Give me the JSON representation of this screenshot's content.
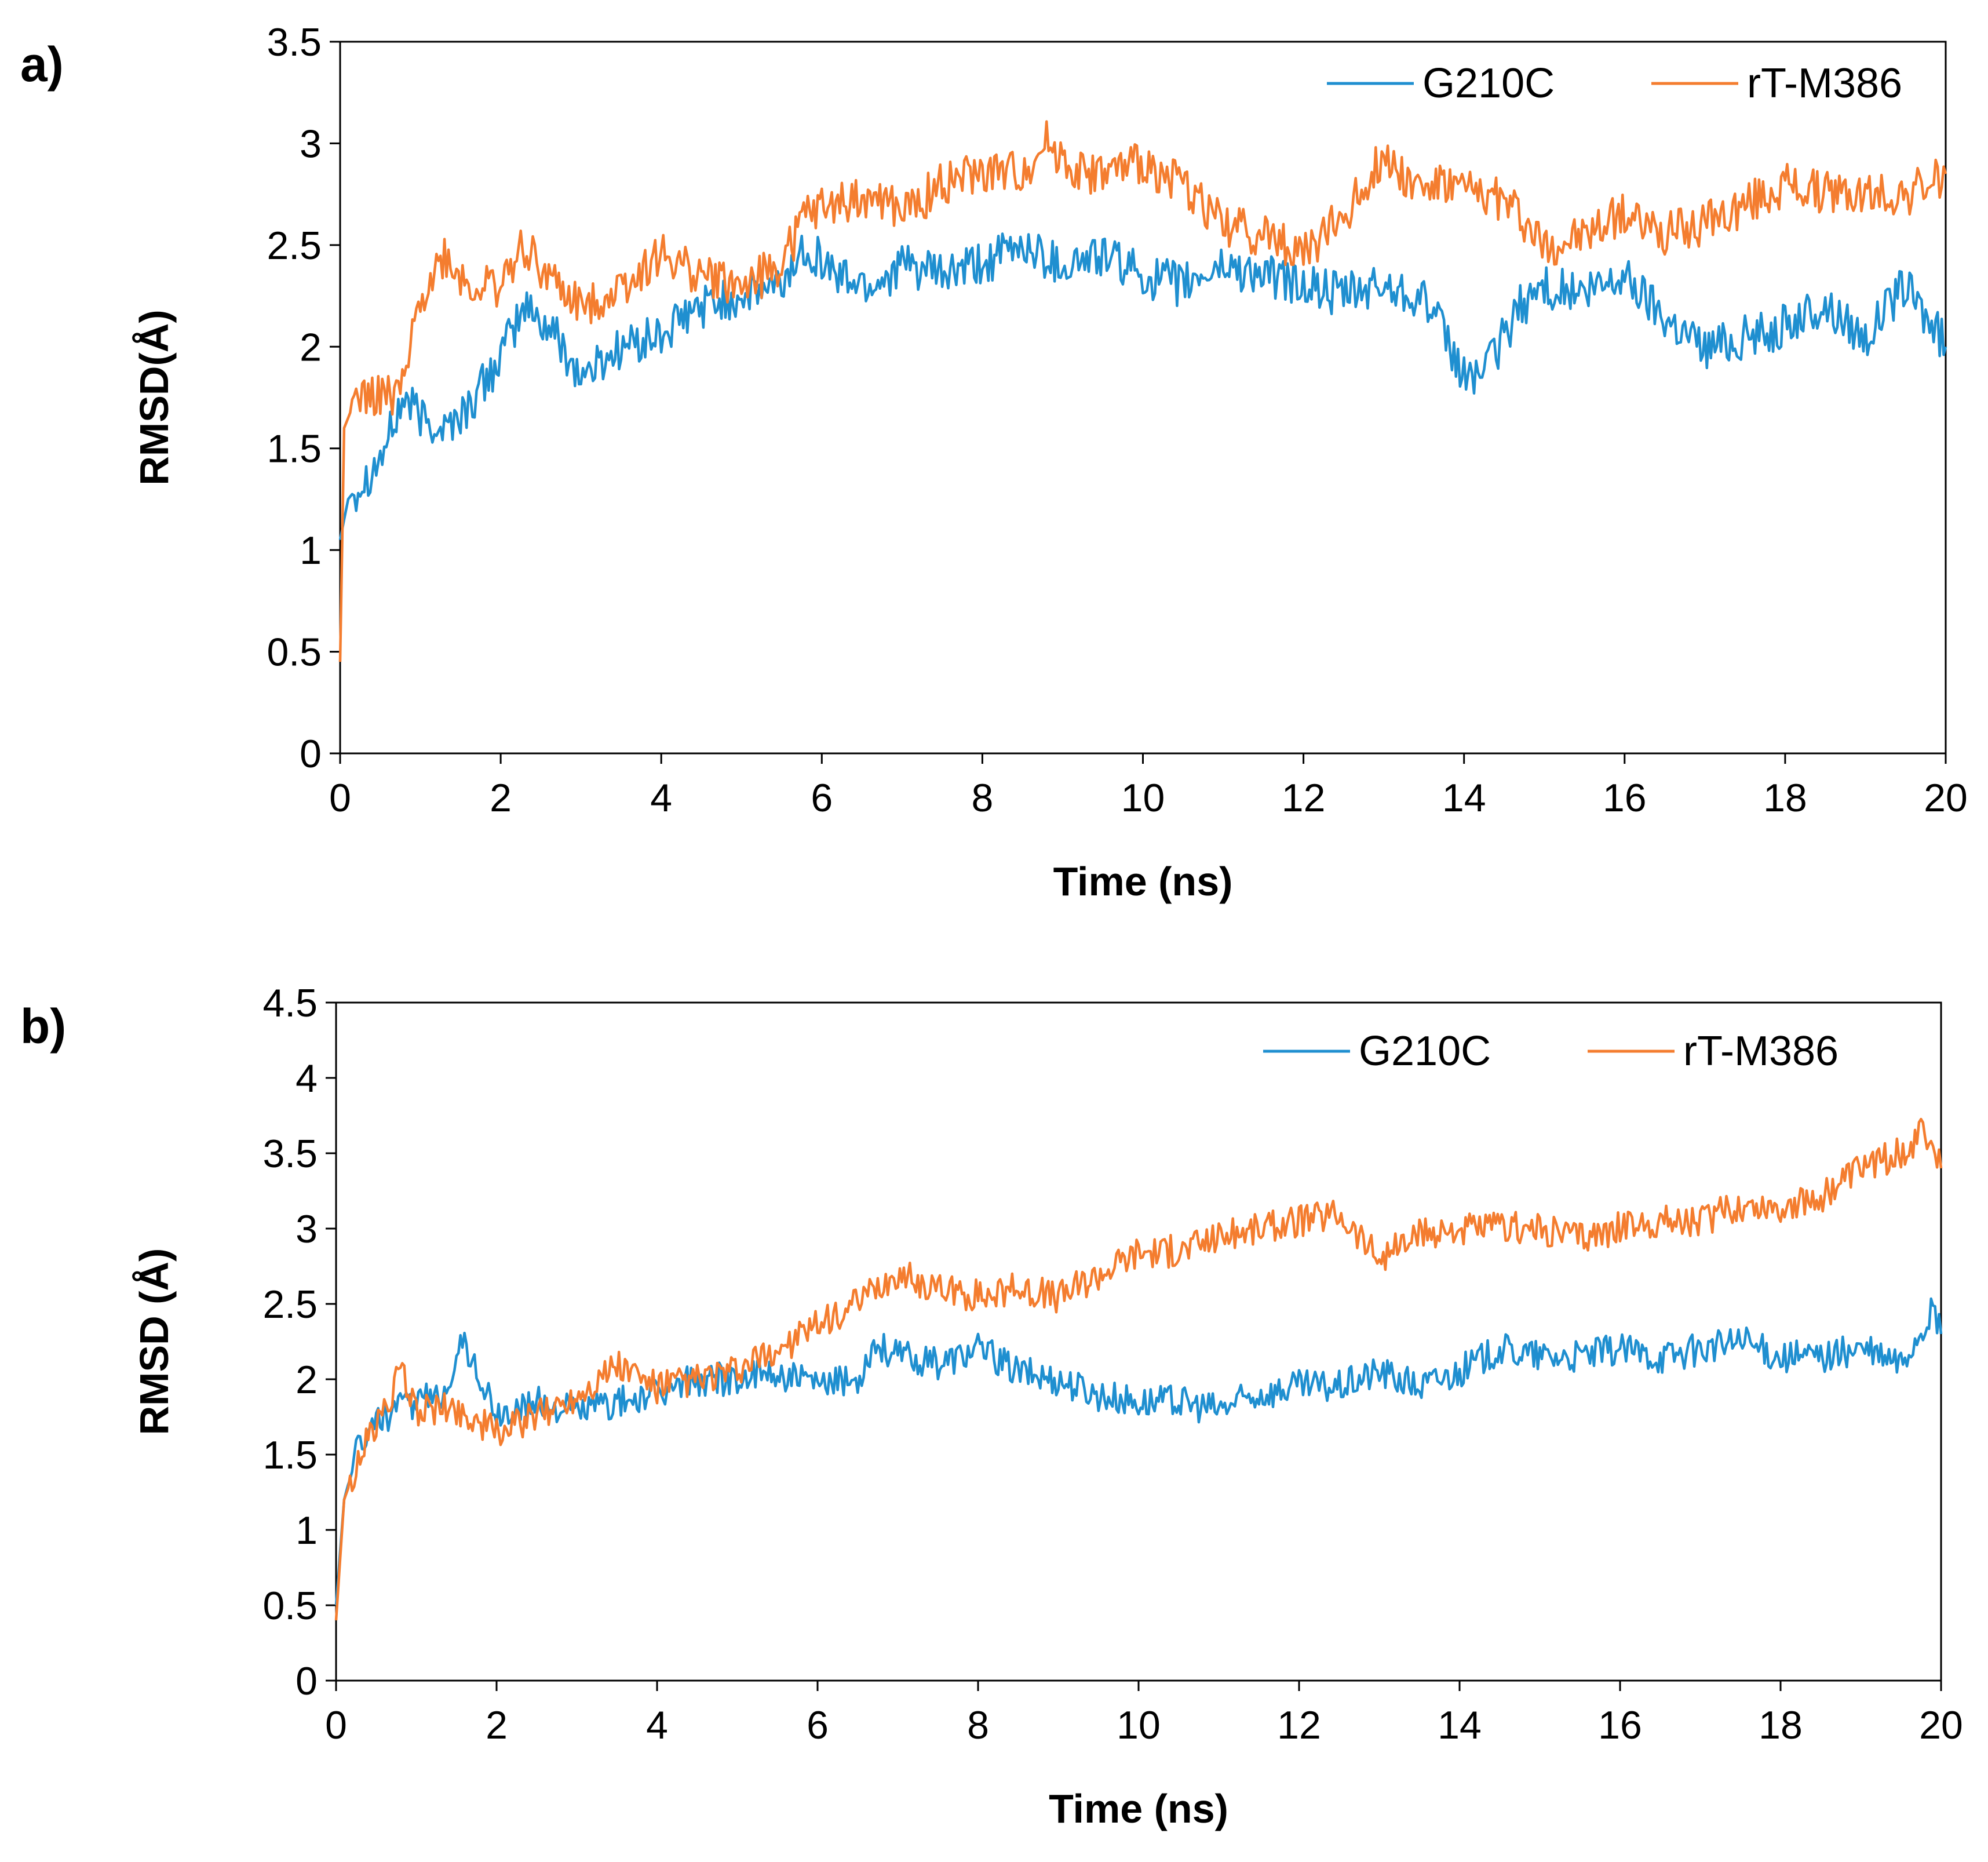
{
  "chart_data": [
    {
      "type": "line",
      "panel_label": "a)",
      "title": "",
      "xlabel": "Time (ns)",
      "ylabel": "RMSD(Å)",
      "xlim": [
        0,
        20
      ],
      "ylim": [
        0,
        3.5
      ],
      "xticks": [
        "0",
        "2",
        "4",
        "6",
        "8",
        "10",
        "12",
        "14",
        "16",
        "18",
        "20"
      ],
      "yticks": [
        "0",
        "0.5",
        "1",
        "1.5",
        "2",
        "2.5",
        "3",
        "3.5"
      ],
      "grid": false,
      "legend_position": "top-right",
      "series": [
        {
          "name": "G210C",
          "color": "#1f8fd0",
          "x": [
            0,
            0.1,
            0.3,
            0.5,
            0.8,
            1.0,
            1.3,
            1.6,
            2.0,
            2.3,
            2.7,
            3.0,
            3.5,
            4.0,
            4.5,
            5.0,
            5.5,
            5.8,
            6.2,
            6.6,
            7.0,
            7.5,
            8.0,
            8.5,
            9.0,
            9.5,
            10.0,
            10.5,
            11.0,
            11.5,
            12.0,
            12.5,
            13.0,
            13.5,
            14.0,
            14.3,
            14.7,
            15.0,
            15.5,
            16.0,
            16.5,
            17.0,
            17.5,
            18.0,
            18.5,
            19.0,
            19.5,
            20.0
          ],
          "y": [
            1.05,
            1.25,
            1.35,
            1.45,
            1.75,
            1.65,
            1.6,
            1.7,
            1.95,
            2.2,
            2.05,
            1.85,
            2.0,
            2.05,
            2.2,
            2.25,
            2.3,
            2.5,
            2.35,
            2.3,
            2.4,
            2.35,
            2.4,
            2.5,
            2.4,
            2.45,
            2.35,
            2.3,
            2.4,
            2.35,
            2.3,
            2.25,
            2.3,
            2.25,
            1.85,
            1.9,
            2.2,
            2.3,
            2.25,
            2.35,
            2.15,
            2.0,
            2.05,
            2.1,
            2.2,
            2.05,
            2.3,
            2.0
          ]
        },
        {
          "name": "rT-M386",
          "color": "#f47d2f",
          "x": [
            0,
            0.05,
            0.2,
            0.5,
            0.8,
            1.0,
            1.3,
            1.6,
            2.0,
            2.3,
            2.7,
            3.0,
            3.5,
            4.0,
            4.5,
            5.0,
            5.5,
            5.8,
            6.2,
            6.6,
            7.0,
            7.5,
            8.0,
            8.5,
            8.8,
            9.2,
            9.6,
            10.0,
            10.5,
            11.0,
            11.5,
            12.0,
            12.5,
            13.0,
            13.4,
            13.8,
            14.2,
            14.6,
            15.0,
            15.5,
            16.0,
            16.5,
            17.0,
            17.5,
            18.0,
            18.5,
            19.0,
            19.5,
            20.0
          ],
          "y": [
            0.45,
            1.6,
            1.75,
            1.75,
            1.8,
            2.25,
            2.45,
            2.3,
            2.3,
            2.5,
            2.3,
            2.2,
            2.3,
            2.45,
            2.35,
            2.3,
            2.4,
            2.65,
            2.7,
            2.75,
            2.65,
            2.8,
            2.85,
            2.85,
            3.0,
            2.85,
            2.85,
            2.9,
            2.8,
            2.6,
            2.55,
            2.45,
            2.65,
            2.95,
            2.8,
            2.8,
            2.75,
            2.7,
            2.5,
            2.55,
            2.65,
            2.55,
            2.6,
            2.7,
            2.8,
            2.75,
            2.75,
            2.75,
            2.85
          ]
        }
      ]
    },
    {
      "type": "line",
      "panel_label": "b)",
      "title": "",
      "xlabel": "Time (ns)",
      "ylabel": "RMSD (Å)",
      "xlim": [
        0,
        20
      ],
      "ylim": [
        0,
        4.5
      ],
      "xticks": [
        "0",
        "2",
        "4",
        "6",
        "8",
        "10",
        "12",
        "14",
        "16",
        "18",
        "20"
      ],
      "yticks": [
        "0",
        "0.5",
        "1",
        "1.5",
        "2",
        "2.5",
        "3",
        "3.5",
        "4",
        "4.5"
      ],
      "grid": false,
      "legend_position": "top-right",
      "series": [
        {
          "name": "G210C",
          "color": "#1f8fd0",
          "x": [
            0,
            0.1,
            0.3,
            0.6,
            1.0,
            1.3,
            1.6,
            2.0,
            2.5,
            3.0,
            3.5,
            4.0,
            4.5,
            5.0,
            5.5,
            6.0,
            6.5,
            6.7,
            7.0,
            7.5,
            8.0,
            8.5,
            9.0,
            9.5,
            10.0,
            10.5,
            11.0,
            11.5,
            12.0,
            12.5,
            13.0,
            13.5,
            14.0,
            14.5,
            15.0,
            15.5,
            16.0,
            16.5,
            17.0,
            17.5,
            18.0,
            18.5,
            19.0,
            19.5,
            19.9,
            20.0
          ],
          "y": [
            0.5,
            1.2,
            1.6,
            1.75,
            1.85,
            1.9,
            2.25,
            1.75,
            1.85,
            1.8,
            1.85,
            1.9,
            2.0,
            2.0,
            2.05,
            1.95,
            2.0,
            2.25,
            2.15,
            2.1,
            2.2,
            2.05,
            2.0,
            1.9,
            1.85,
            1.85,
            1.8,
            1.9,
            1.95,
            1.95,
            2.05,
            1.95,
            2.05,
            2.2,
            2.15,
            2.15,
            2.2,
            2.15,
            2.2,
            2.25,
            2.15,
            2.15,
            2.2,
            2.1,
            2.45,
            2.3
          ]
        },
        {
          "name": "rT-M386",
          "color": "#f47d2f",
          "x": [
            0,
            0.1,
            0.3,
            0.6,
            0.8,
            1.0,
            1.5,
            2.0,
            2.5,
            3.0,
            3.5,
            4.0,
            4.5,
            5.0,
            5.5,
            6.0,
            6.5,
            7.0,
            7.5,
            8.0,
            8.5,
            9.0,
            9.5,
            10.0,
            10.5,
            11.0,
            11.5,
            12.0,
            12.5,
            13.0,
            13.5,
            14.0,
            14.5,
            15.0,
            15.5,
            16.0,
            16.5,
            17.0,
            17.5,
            18.0,
            18.5,
            19.0,
            19.5,
            19.8,
            20.0
          ],
          "y": [
            0.4,
            1.2,
            1.5,
            1.8,
            2.05,
            1.8,
            1.8,
            1.65,
            1.75,
            1.9,
            2.1,
            1.95,
            2.0,
            2.05,
            2.2,
            2.35,
            2.5,
            2.7,
            2.6,
            2.55,
            2.6,
            2.55,
            2.7,
            2.85,
            2.85,
            2.95,
            3.0,
            3.05,
            3.1,
            2.8,
            2.95,
            3.0,
            3.0,
            3.0,
            2.95,
            3.0,
            3.05,
            3.05,
            3.15,
            3.15,
            3.2,
            3.4,
            3.5,
            3.65,
            3.4
          ]
        }
      ]
    }
  ]
}
